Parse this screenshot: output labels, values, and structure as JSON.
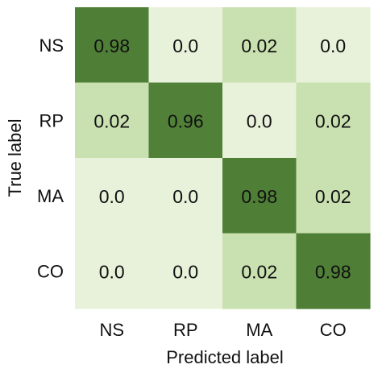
{
  "chart_data": {
    "type": "heatmap",
    "title": "",
    "xlabel": "Predicted label",
    "ylabel": "True label",
    "x_categories": [
      "NS",
      "RP",
      "MA",
      "CO"
    ],
    "y_categories": [
      "NS",
      "RP",
      "MA",
      "CO"
    ],
    "values": [
      [
        0.98,
        0.0,
        0.02,
        0.0
      ],
      [
        0.02,
        0.96,
        0.0,
        0.02
      ],
      [
        0.0,
        0.0,
        0.98,
        0.02
      ],
      [
        0.0,
        0.0,
        0.02,
        0.98
      ]
    ],
    "value_labels": [
      [
        "0.98",
        "0.0",
        "0.02",
        "0.0"
      ],
      [
        "0.02",
        "0.96",
        "0.0",
        "0.02"
      ],
      [
        "0.0",
        "0.0",
        "0.98",
        "0.02"
      ],
      [
        "0.0",
        "0.0",
        "0.02",
        "0.98"
      ]
    ],
    "colormap": {
      "low": "#e8f2da",
      "mid": "#c9e0b0",
      "high": "#4c7d33"
    },
    "grid": false,
    "legend": "none",
    "colorbar": false
  }
}
